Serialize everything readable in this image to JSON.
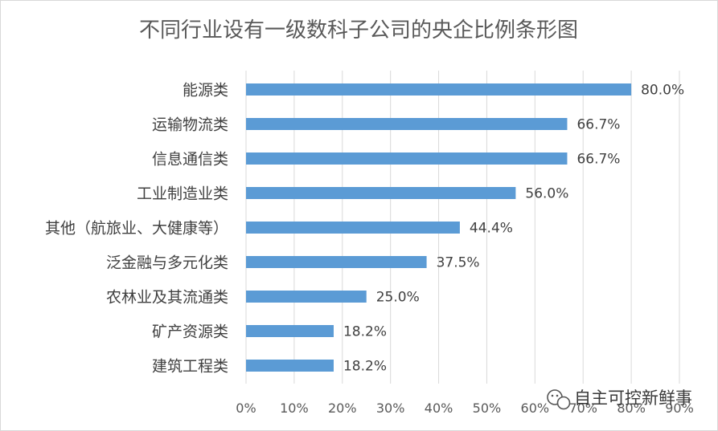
{
  "chart_data": {
    "type": "bar",
    "orientation": "horizontal",
    "title": "不同行业设有一级数科子公司的央企比例条形图",
    "categories": [
      "能源类",
      "运输物流类",
      "信息通信类",
      "工业制造业类",
      "其他（航旅业、大健康等）",
      "泛金融与多元化类",
      "农林业及其流通类",
      "矿产资源类",
      "建筑工程类"
    ],
    "values": [
      80.0,
      66.7,
      66.7,
      56.0,
      44.4,
      37.5,
      25.0,
      18.2,
      18.2
    ],
    "value_labels": [
      "80.0%",
      "66.7%",
      "66.7%",
      "56.0%",
      "44.4%",
      "37.5%",
      "25.0%",
      "18.2%",
      "18.2%"
    ],
    "x_ticks": [
      "0%",
      "10%",
      "20%",
      "30%",
      "40%",
      "50%",
      "60%",
      "70%",
      "80%",
      "90%"
    ],
    "xlim": [
      0,
      90
    ],
    "grid": "vertical",
    "legend": "none",
    "bar_color": "#5b9bd5",
    "grid_color": "#d9d9d9"
  },
  "watermark": {
    "text": "自主可控新鲜事",
    "icon": "wechat-icon"
  }
}
